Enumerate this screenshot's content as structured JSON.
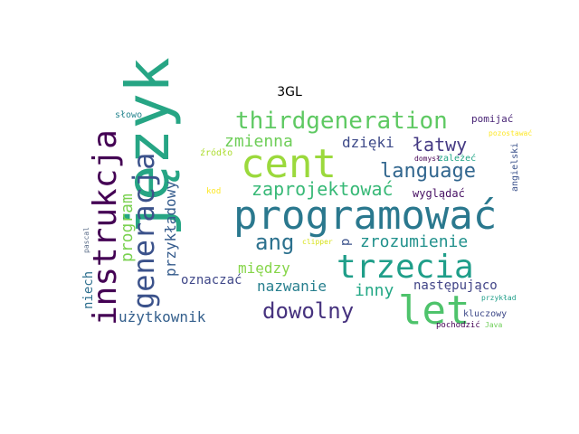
{
  "title": "3GL",
  "words": [
    {
      "id": "jezyk",
      "text": "język",
      "color": "#26a584"
    },
    {
      "id": "programowac",
      "text": "programować",
      "color": "#2a788e"
    },
    {
      "id": "cent",
      "text": "cent",
      "color": "#9bd93c"
    },
    {
      "id": "let",
      "text": "let",
      "color": "#4ec36b"
    },
    {
      "id": "trzecia",
      "text": "trzecia",
      "color": "#1f9e89"
    },
    {
      "id": "instrukcja",
      "text": "instrukcja",
      "color": "#440154"
    },
    {
      "id": "generacja",
      "text": "generacja",
      "color": "#3b528b"
    },
    {
      "id": "thirdgeneration",
      "text": "thirdgeneration",
      "color": "#5ec962"
    },
    {
      "id": "language",
      "text": "language",
      "color": "#31668e"
    },
    {
      "id": "zaprojektowac",
      "text": "zaprojektować",
      "color": "#38b977"
    },
    {
      "id": "dowolny",
      "text": "dowolny",
      "color": "#46327e"
    },
    {
      "id": "ang",
      "text": "ang",
      "color": "#2c718e"
    },
    {
      "id": "zrozumienie",
      "text": "zrozumienie",
      "color": "#21918c"
    },
    {
      "id": "latwy",
      "text": "łatwy",
      "color": "#443983"
    },
    {
      "id": "zmienna",
      "text": "zmienna",
      "color": "#6ece58"
    },
    {
      "id": "dzieki",
      "text": "dzięki",
      "color": "#3e4a89"
    },
    {
      "id": "program",
      "text": "program",
      "color": "#7ad151"
    },
    {
      "id": "przykladowy",
      "text": "przykładowy",
      "color": "#365c8d"
    },
    {
      "id": "miedzy",
      "text": "między",
      "color": "#86d549"
    },
    {
      "id": "nazwanie",
      "text": "nazwanie",
      "color": "#277f8e"
    },
    {
      "id": "inny",
      "text": "inny",
      "color": "#22a785"
    },
    {
      "id": "nastepujaco",
      "text": "następująco",
      "color": "#414487"
    },
    {
      "id": "uzytkownik",
      "text": "użytkownik",
      "color": "#35608d"
    },
    {
      "id": "oznaczac",
      "text": "oznaczać",
      "color": "#3f4788"
    },
    {
      "id": "niech",
      "text": "niech",
      "color": "#2e6f8e"
    },
    {
      "id": "wygladac",
      "text": "wyglądać",
      "color": "#471063"
    },
    {
      "id": "p",
      "text": "p",
      "color": "#3b528b"
    },
    {
      "id": "pomijac",
      "text": "pomijać",
      "color": "#482475"
    },
    {
      "id": "slowo",
      "text": "słowo",
      "color": "#25858e"
    },
    {
      "id": "zrodlo",
      "text": "źródło",
      "color": "#addc30"
    },
    {
      "id": "pozostawac",
      "text": "pozostawać",
      "color": "#fde725"
    },
    {
      "id": "domysl",
      "text": "domysł",
      "color": "#440154"
    },
    {
      "id": "zalezec",
      "text": "zależeć",
      "color": "#20a486"
    },
    {
      "id": "angielski",
      "text": "angielski",
      "color": "#3b528b"
    },
    {
      "id": "kod",
      "text": "kod",
      "color": "#fde725"
    },
    {
      "id": "pascal",
      "text": "pascal",
      "color": "#5b6d89"
    },
    {
      "id": "clipper",
      "text": "clipper",
      "color": "#d8e219"
    },
    {
      "id": "przyklad",
      "text": "przykład",
      "color": "#1f9e89"
    },
    {
      "id": "kluczowy",
      "text": "kluczowy",
      "color": "#3e4989"
    },
    {
      "id": "pochodzic",
      "text": "pochodzić",
      "color": "#440154"
    },
    {
      "id": "java",
      "text": "Java",
      "color": "#6ece58"
    }
  ]
}
